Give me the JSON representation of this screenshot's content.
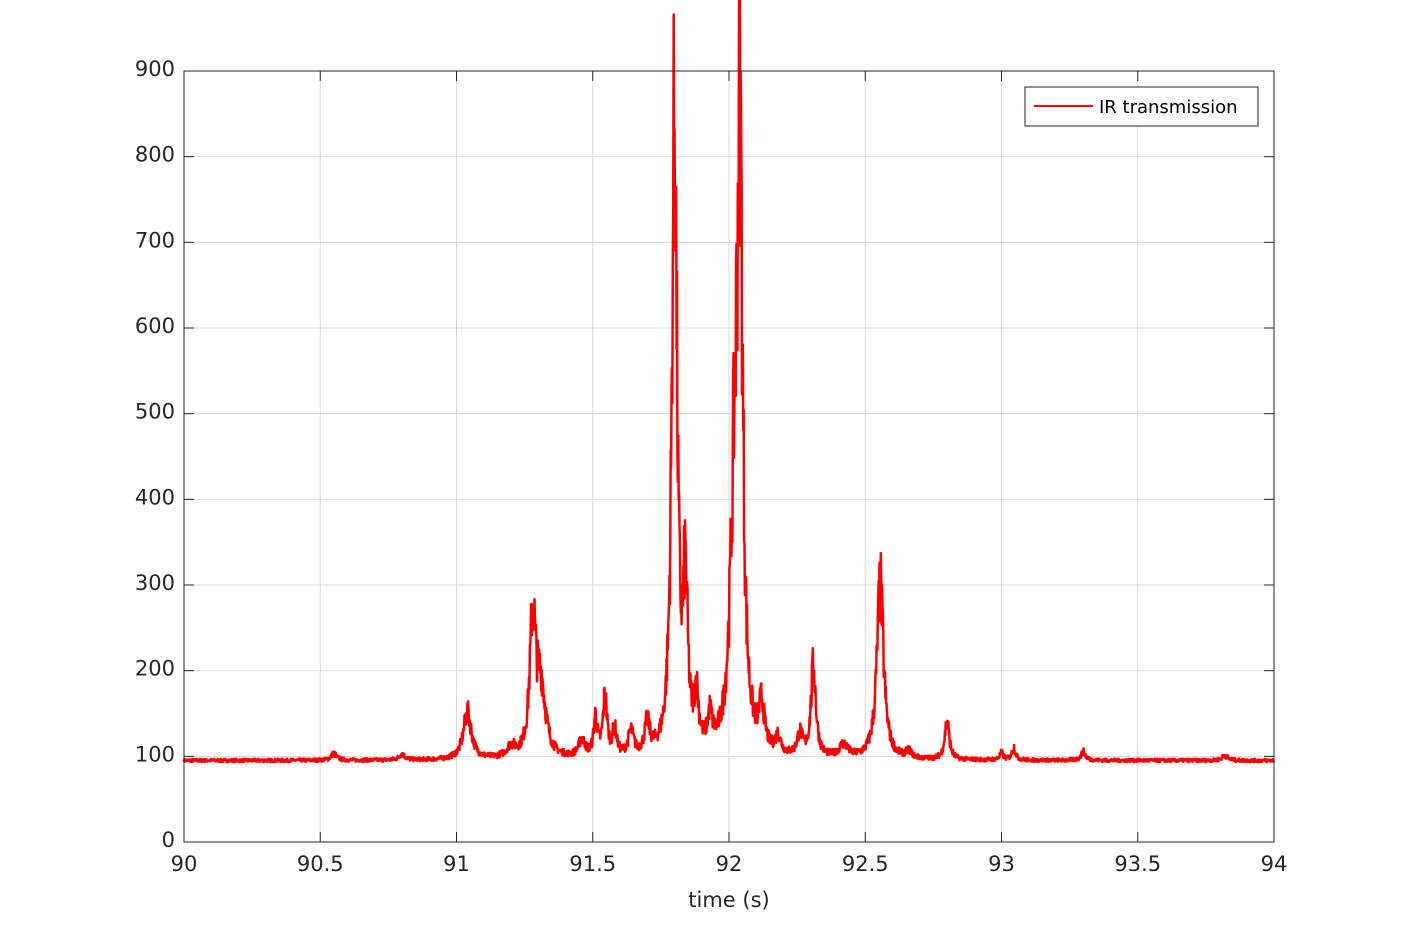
{
  "chart_data": {
    "type": "line",
    "title": "",
    "xlabel": "time (s)",
    "ylabel": "",
    "xlim": [
      90,
      94
    ],
    "ylim": [
      0,
      900
    ],
    "xticks": [
      "90",
      "90.5",
      "91",
      "91.5",
      "92",
      "92.5",
      "93",
      "93.5",
      "94"
    ],
    "yticks": [
      "0",
      "100",
      "200",
      "300",
      "400",
      "500",
      "600",
      "700",
      "800",
      "900"
    ],
    "grid": true,
    "legend_position": "top-right",
    "baseline": 95,
    "peaks": [
      {
        "t": 90.55,
        "h": 8,
        "w": 0.012
      },
      {
        "t": 90.8,
        "h": 7,
        "w": 0.012
      },
      {
        "t": 91.04,
        "h": 55,
        "w": 0.018
      },
      {
        "t": 91.2,
        "h": 12,
        "w": 0.02
      },
      {
        "t": 91.28,
        "h": 160,
        "w": 0.013
      },
      {
        "t": 91.31,
        "h": 80,
        "w": 0.02
      },
      {
        "t": 91.46,
        "h": 20,
        "w": 0.015
      },
      {
        "t": 91.51,
        "h": 45,
        "w": 0.008
      },
      {
        "t": 91.545,
        "h": 70,
        "w": 0.009
      },
      {
        "t": 91.58,
        "h": 30,
        "w": 0.01
      },
      {
        "t": 91.64,
        "h": 28,
        "w": 0.012
      },
      {
        "t": 91.7,
        "h": 35,
        "w": 0.012
      },
      {
        "t": 91.8,
        "h": 760,
        "w": 0.011
      },
      {
        "t": 91.84,
        "h": 180,
        "w": 0.01
      },
      {
        "t": 91.88,
        "h": 60,
        "w": 0.01
      },
      {
        "t": 91.93,
        "h": 35,
        "w": 0.01
      },
      {
        "t": 92.04,
        "h": 665,
        "w": 0.012
      },
      {
        "t": 92.02,
        "h": 250,
        "w": 0.018
      },
      {
        "t": 92.12,
        "h": 50,
        "w": 0.012
      },
      {
        "t": 92.18,
        "h": 20,
        "w": 0.012
      },
      {
        "t": 92.26,
        "h": 25,
        "w": 0.012
      },
      {
        "t": 92.31,
        "h": 105,
        "w": 0.011
      },
      {
        "t": 92.42,
        "h": 15,
        "w": 0.02
      },
      {
        "t": 92.555,
        "h": 200,
        "w": 0.015
      },
      {
        "t": 92.66,
        "h": 8,
        "w": 0.012
      },
      {
        "t": 92.8,
        "h": 45,
        "w": 0.01
      },
      {
        "t": 93.0,
        "h": 8,
        "w": 0.008
      },
      {
        "t": 93.045,
        "h": 15,
        "w": 0.008
      },
      {
        "t": 93.3,
        "h": 10,
        "w": 0.01
      },
      {
        "t": 93.82,
        "h": 6,
        "w": 0.012
      }
    ],
    "series": [
      {
        "name": "IR transmission",
        "color": "#ff0000"
      }
    ]
  }
}
